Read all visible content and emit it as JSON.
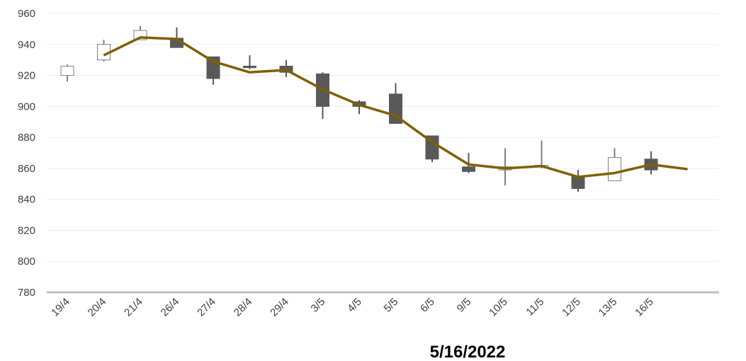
{
  "chart_data": {
    "type": "candlestick",
    "categories": [
      "19/4",
      "20/4",
      "21/4",
      "26/4",
      "27/4",
      "28/4",
      "29/4",
      "3/5",
      "4/5",
      "5/5",
      "6/5",
      "9/5",
      "10/5",
      "11/5",
      "12/5",
      "13/5",
      "16/5"
    ],
    "ohlc": [
      {
        "open": 920,
        "high": 927,
        "low": 916,
        "close": 926
      },
      {
        "open": 930,
        "high": 943,
        "low": 929,
        "close": 940
      },
      {
        "open": 943,
        "high": 952,
        "low": 943,
        "close": 949
      },
      {
        "open": 944,
        "high": 951,
        "low": 938,
        "close": 938
      },
      {
        "open": 932,
        "high": 932,
        "low": 914,
        "close": 918
      },
      {
        "open": 926,
        "high": 933,
        "low": 924,
        "close": 925
      },
      {
        "open": 926,
        "high": 930,
        "low": 919,
        "close": 922
      },
      {
        "open": 921,
        "high": 922,
        "low": 892,
        "close": 900
      },
      {
        "open": 903,
        "high": 904,
        "low": 895,
        "close": 900
      },
      {
        "open": 908,
        "high": 915,
        "low": 889,
        "close": 889
      },
      {
        "open": 881,
        "high": 881,
        "low": 864,
        "close": 866
      },
      {
        "open": 861,
        "high": 870,
        "low": 857,
        "close": 858
      },
      {
        "open": 859,
        "high": 873,
        "low": 849,
        "close": 861
      },
      {
        "open": 862,
        "high": 878,
        "low": 860,
        "close": 862
      },
      {
        "open": 855,
        "high": 859,
        "low": 845,
        "close": 847
      },
      {
        "open": 852,
        "high": 873,
        "low": 852,
        "close": 867
      },
      {
        "open": 866,
        "high": 871,
        "low": 856,
        "close": 859
      }
    ],
    "trend_line": [
      933,
      944.5,
      943.5,
      929,
      922,
      923.5,
      911,
      901,
      894,
      877,
      862.5,
      860,
      861.5,
      854.5,
      857,
      862.5,
      859.5
    ],
    "ylim": [
      780,
      960
    ],
    "yticks": [
      "960",
      "940",
      "920",
      "900",
      "880",
      "860",
      "840",
      "820",
      "800",
      "780"
    ],
    "grid": true,
    "colors": {
      "up_fill": "#ffffff",
      "up_stroke": "#808080",
      "down_fill": "#595959",
      "down_stroke": "#595959",
      "trend": "#7f6000",
      "grid": "#ececec",
      "axis": "#c0c0c0"
    }
  },
  "date_label": "5/16/2022"
}
